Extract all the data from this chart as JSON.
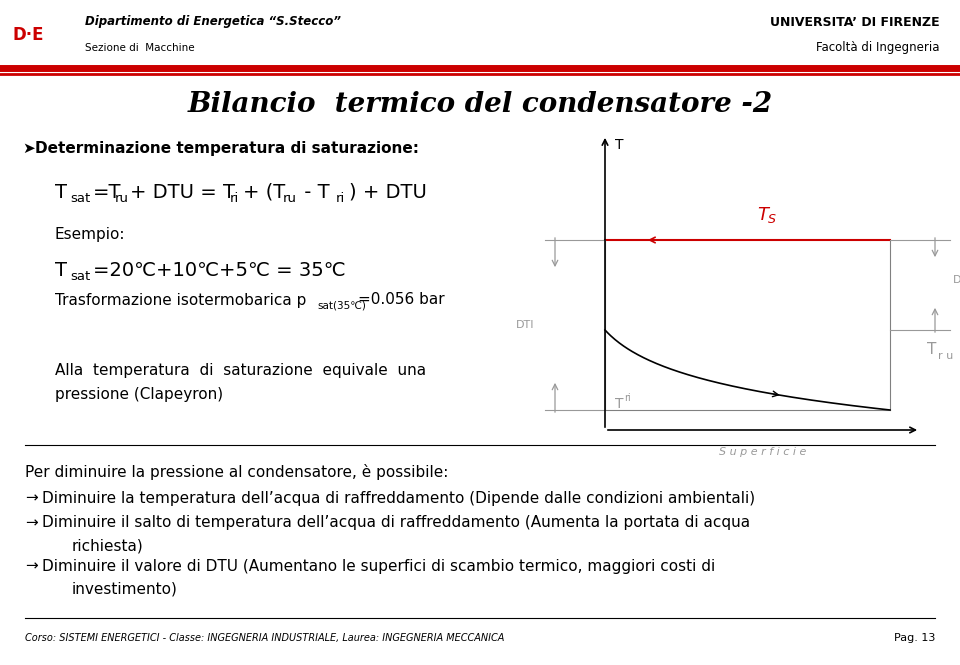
{
  "title": "Bilancio  termico del condensatore -2",
  "title_fontsize": 20,
  "bg_color": "#ffffff",
  "header_left_line1": "Dipartimento di Energetica “S.Stecco”",
  "header_left_line2": "Sezione di  Macchine",
  "header_right_line1": "UNIVERSITA’ DI FIRENZE",
  "header_right_line2": "Facoltà di Ingegneria",
  "footer_text": "Corso: SISTEMI ENERGETICI - Classe: INGEGNERIA INDUSTRIALE, Laurea: INGEGNERIA MECCANICA",
  "footer_page": "Pag. 13",
  "accent_color": "#cc0000",
  "gray_color": "#999999",
  "text_color": "#000000",
  "bullet_arrow": "→",
  "bullet1": "Diminuire la temperatura dell’acqua di raffreddamento (Dipende dalle condizioni ambientali)",
  "bullet2a": "Diminuire il salto di temperatura dell’acqua di raffreddamento (Aumenta la portata di acqua",
  "bullet2b": "richiesta)",
  "bullet3a": "Diminuire il valore di DTU (Aumentano le superfici di scambio termico, maggiori costi di",
  "bullet3b": "investimento)"
}
